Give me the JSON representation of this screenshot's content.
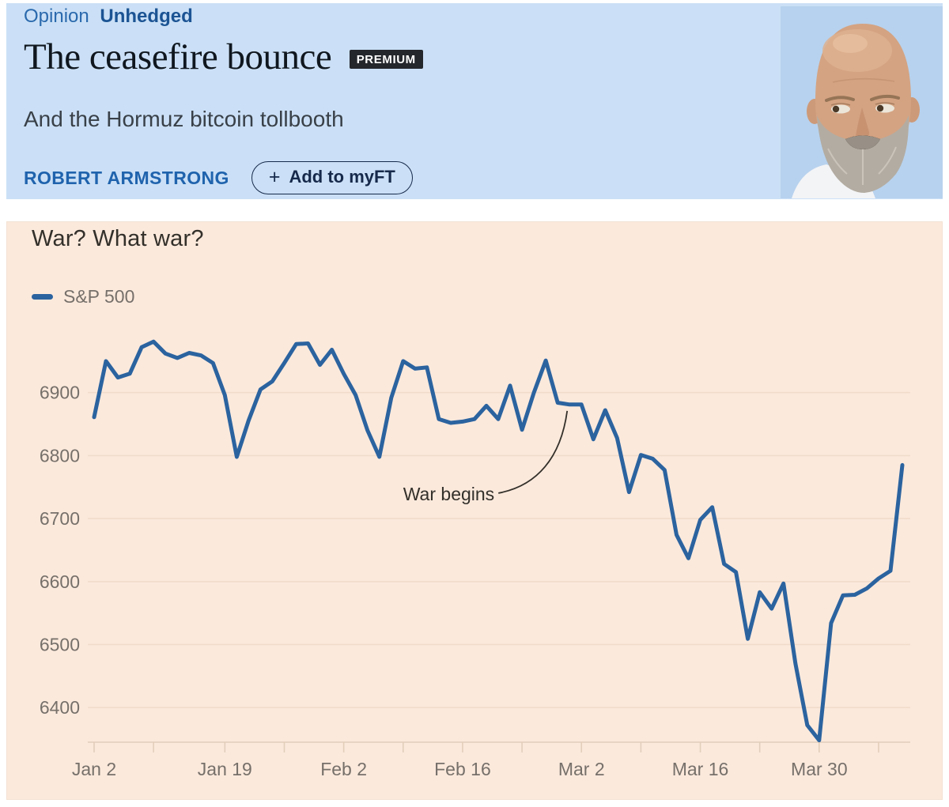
{
  "colors": {
    "header_background": "#cbe0f6",
    "kicker_blue": "#2a69ad",
    "brand_blue": "#1c5494",
    "headline_ink": "#10171f",
    "premium_badge_bg": "#24272c",
    "author_blue": "#1f63ad",
    "myft_navy": "#16294b",
    "panel_background": "#fbe9dc",
    "line_blue": "#2b639f",
    "grid_line": "#f1dccb",
    "axis_line": "#e2ceba",
    "axis_text": "#76706a",
    "annotation_ink": "#33302a"
  },
  "header": {
    "kicker": {
      "section": "Opinion",
      "brand": "Unhedged"
    },
    "title": "The ceasefire bounce",
    "premium_badge": "PREMIUM",
    "subtitle": "And the Hormuz bitcoin tollbooth",
    "author": "ROBERT ARMSTRONG",
    "myft_button": {
      "plus": "+",
      "label": "Add to myFT"
    }
  },
  "chart_data": {
    "type": "line",
    "title": "War? What war?",
    "xlabel": "",
    "ylabel": "",
    "grid": "horizontal",
    "legend_position": "top-left",
    "background": "#fbe9dc",
    "y_ticks": [
      6900,
      6800,
      6700,
      6600,
      6500,
      6400
    ],
    "ylim": [
      6345,
      6995
    ],
    "x_tick_labels": [
      "Jan 2",
      "Jan 19",
      "Feb 2",
      "Feb 16",
      "Mar 2",
      "Mar 16",
      "Mar 30"
    ],
    "x_tick_days": [
      0,
      11,
      21,
      31,
      41,
      51,
      61
    ],
    "xlim_days": [
      0,
      68
    ],
    "series": [
      {
        "name": "S&P 500",
        "color": "#2b639f",
        "values": [
          6861,
          6950,
          6924,
          6930,
          6972,
          6981,
          6962,
          6955,
          6963,
          6959,
          6947,
          6896,
          6798,
          6856,
          6905,
          6918,
          6947,
          6977,
          6978,
          6944,
          6968,
          6930,
          6896,
          6840,
          6798,
          6892,
          6950,
          6938,
          6940,
          6858,
          6852,
          6854,
          6858,
          6879,
          6858,
          6911,
          6841,
          6900,
          6951,
          6884,
          6881,
          6881,
          6826,
          6872,
          6828,
          6742,
          6801,
          6795,
          6777,
          6674,
          6637,
          6698,
          6718,
          6628,
          6615,
          6509,
          6583,
          6557,
          6597,
          6470,
          6372,
          6348,
          6534,
          6578,
          6579,
          6589,
          6605,
          6617,
          6785
        ]
      }
    ],
    "annotation": {
      "text": "War begins",
      "anchor_day": 40,
      "anchor_value": 6881
    }
  }
}
